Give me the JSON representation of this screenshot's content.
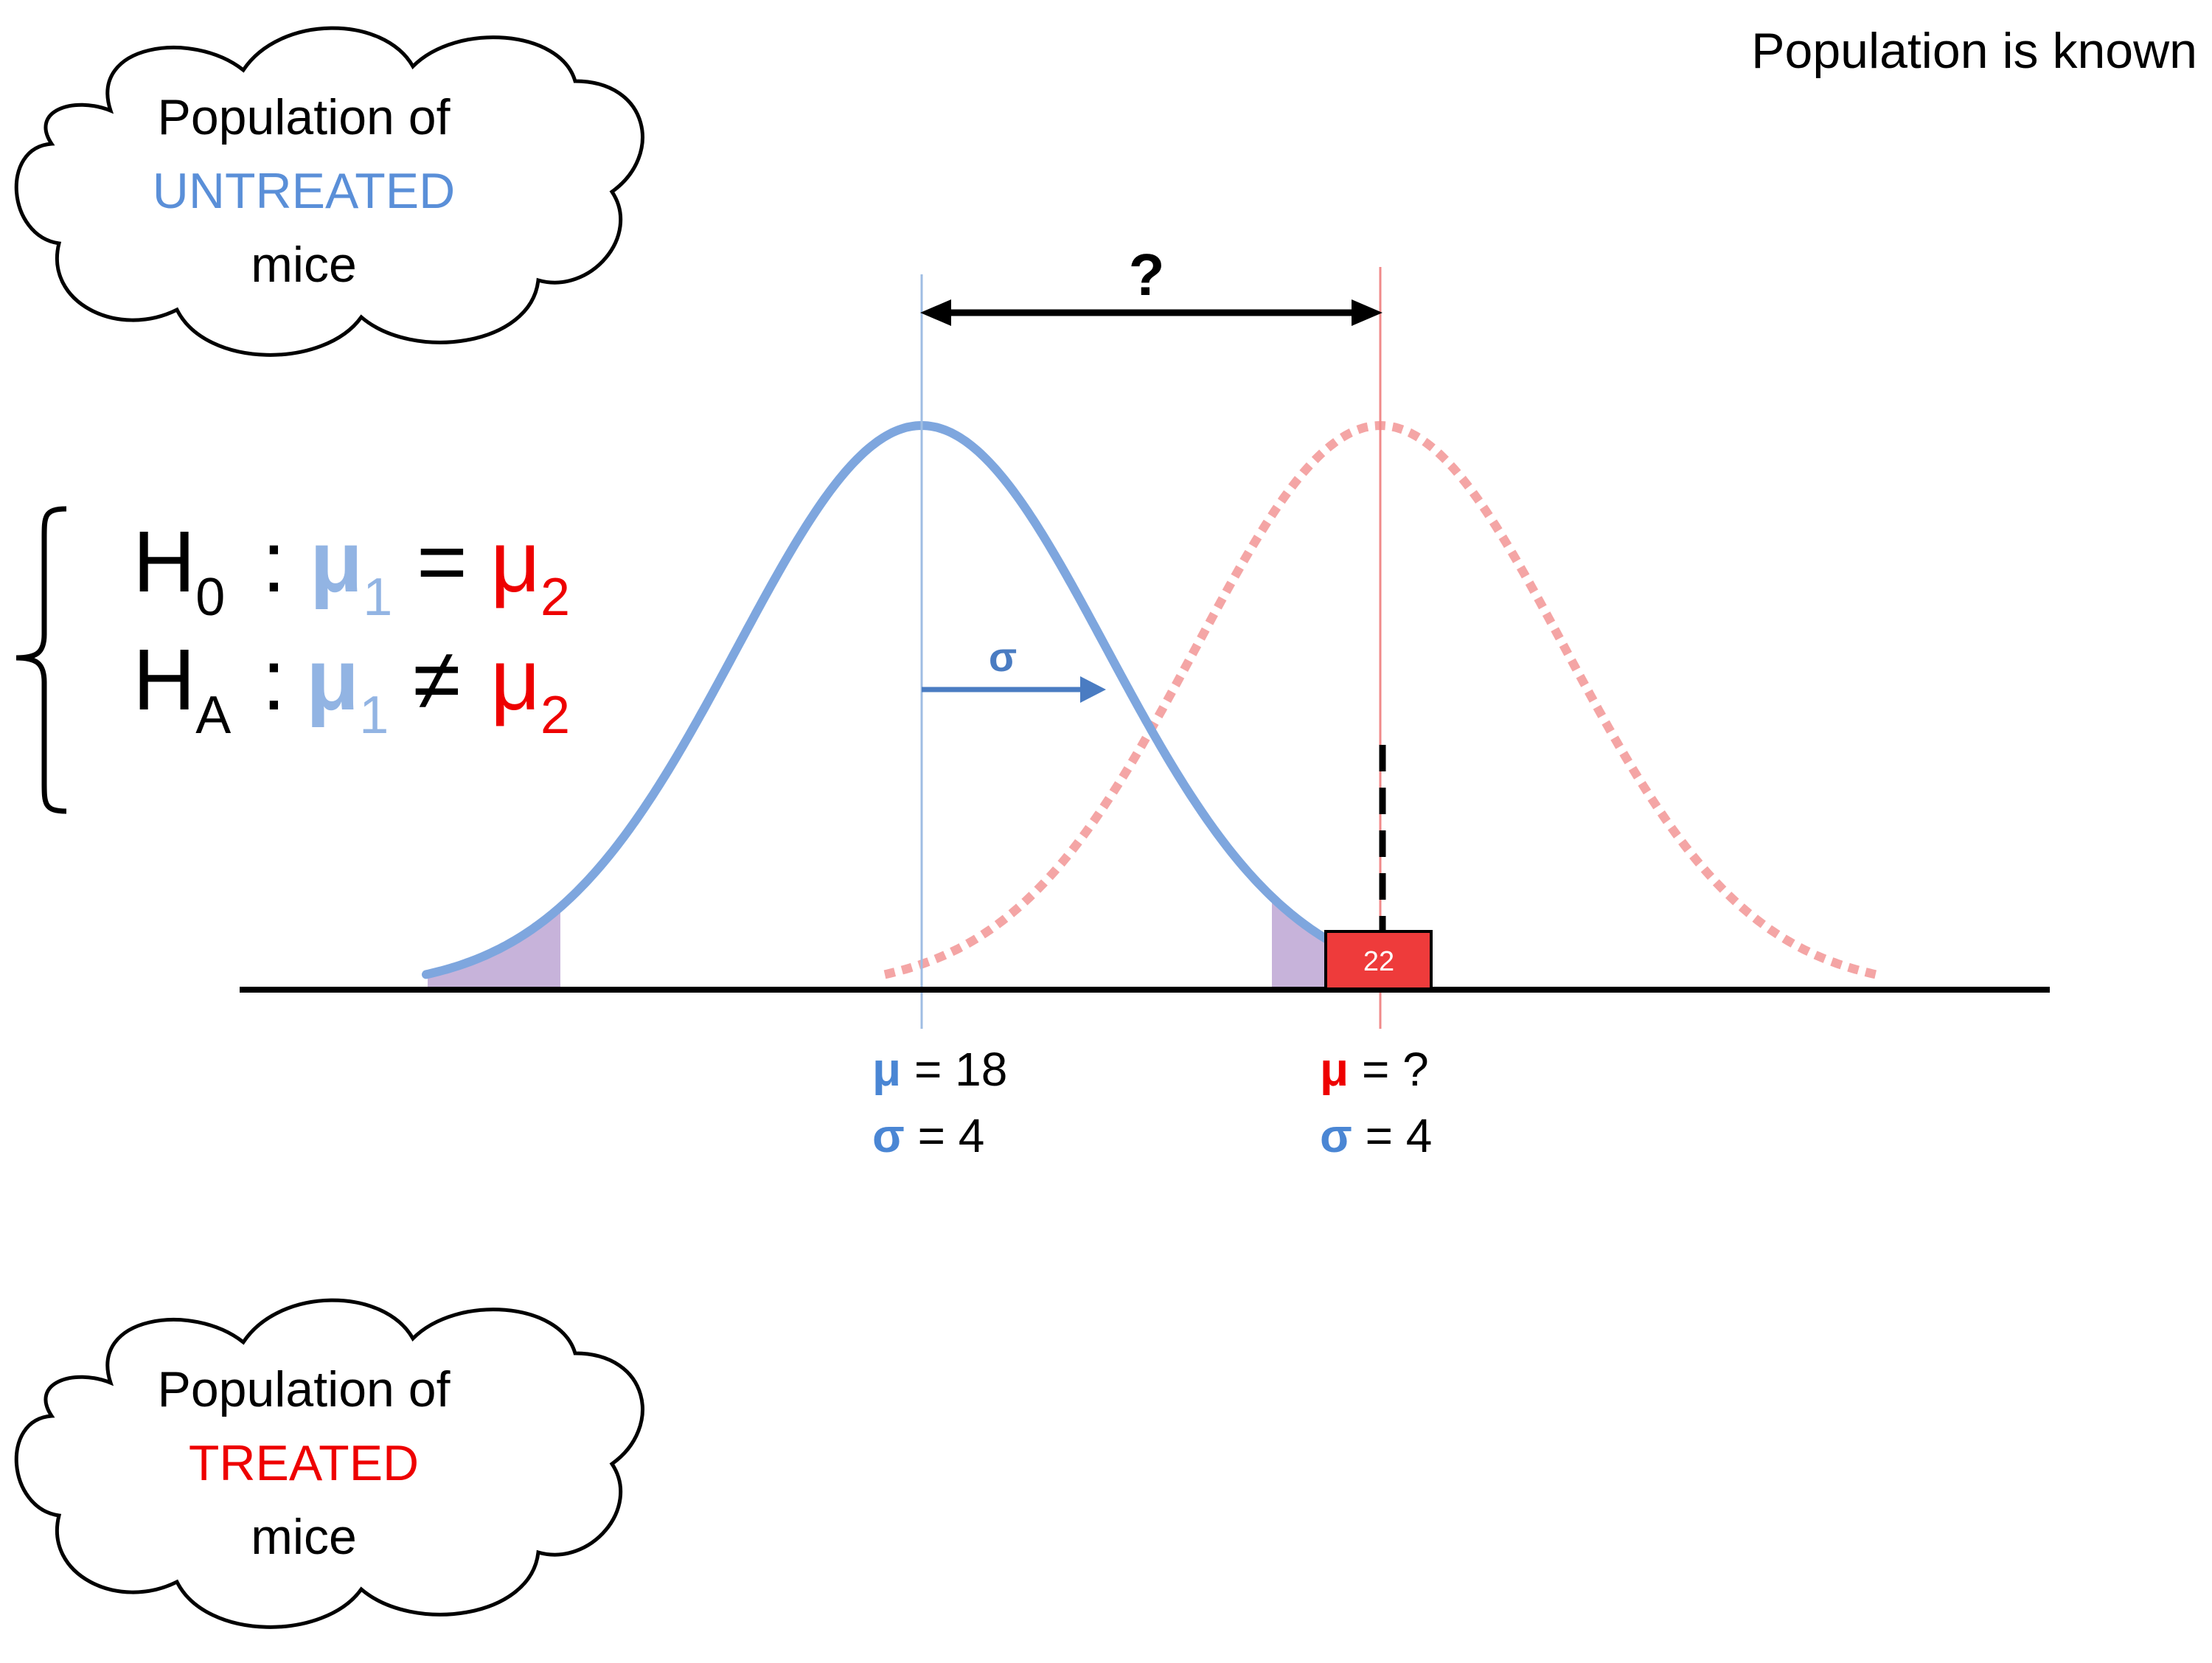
{
  "header_note": "Population is known",
  "cloud_top": {
    "line1": "Population of",
    "line2": "UNTREATED",
    "line3": "mice",
    "highlight_color": "#5a8fd8"
  },
  "cloud_bottom": {
    "line1": "Population of",
    "line2": "TREATED",
    "line3": "mice",
    "highlight_color": "#ee0000"
  },
  "hypotheses": {
    "h0": {
      "symbol": "H",
      "sub": "0",
      "colon": ":",
      "mu_left": "μ",
      "mu_left_sub": "1",
      "op": "=",
      "mu_right": "μ",
      "mu_right_sub": "2"
    },
    "ha": {
      "symbol": "H",
      "sub": "A",
      "colon": ":",
      "mu_left": "μ",
      "mu_left_sub": "1",
      "op": "≠",
      "mu_right": "μ",
      "mu_right_sub": "2"
    },
    "mu1_color": "#92b4e3",
    "mu2_color": "#ee0000"
  },
  "diagram": {
    "difference_label": "?",
    "sigma_arrow_label": "σ",
    "observed_value": "22",
    "untreated_params": {
      "mu_symbol": "μ",
      "mu_value": " = 18",
      "sigma_symbol": "σ",
      "sigma_value": " = 4"
    },
    "treated_params": {
      "mu_symbol": "μ",
      "mu_value": " = ?",
      "sigma_symbol": "σ",
      "sigma_value": " = 4"
    },
    "colors": {
      "untreated_curve": "#7ea6de",
      "treated_curve": "#f4a5a5",
      "tail_fill": "#c7b3da",
      "observed_box": "#ee3b3b",
      "sigma_arrow": "#4a7cc2",
      "param_blue": "#4a86d4",
      "param_red": "#ee0000"
    }
  }
}
